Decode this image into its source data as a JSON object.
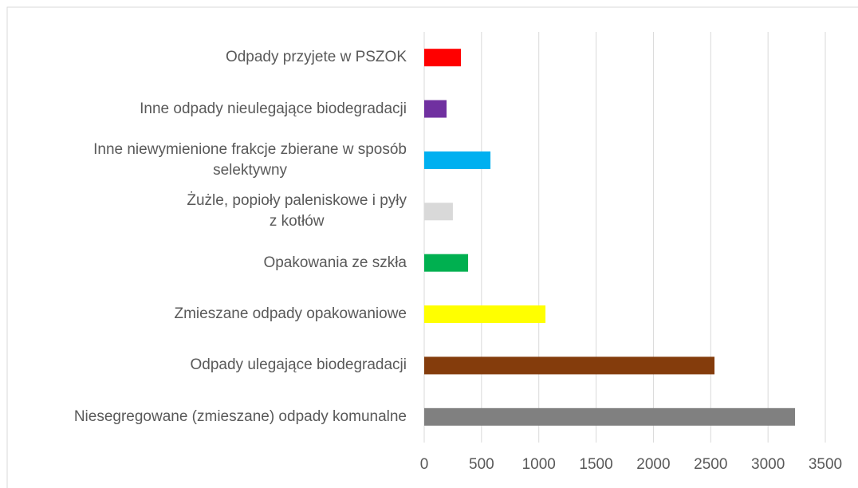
{
  "chart_data": {
    "type": "bar",
    "orientation": "horizontal",
    "categories": [
      "Odpady przyjete w PSZOK",
      "Inne odpady nieulegające biodegradacji",
      "Inne niewymienione frakcje zbierane w sposób\nselektywny",
      "Żużle, popioły paleniskowe i pyły\nz kotłów",
      "Opakowania ze szkła",
      "Zmieszane odpady opakowaniowe",
      "Odpady ulegające biodegradacji",
      "Niesegregowane (zmieszane) odpady komunalne"
    ],
    "values": [
      320,
      195,
      578,
      250,
      383,
      1058,
      2533,
      3236
    ],
    "colors": [
      "#ff0000",
      "#7030a0",
      "#00b0f0",
      "#d9d9d9",
      "#00b050",
      "#ffff00",
      "#843c0c",
      "#808080"
    ],
    "xlim": [
      0,
      3500
    ],
    "xticks": [
      0,
      500,
      1000,
      1500,
      2000,
      2500,
      3000,
      3500
    ],
    "grid": true
  }
}
